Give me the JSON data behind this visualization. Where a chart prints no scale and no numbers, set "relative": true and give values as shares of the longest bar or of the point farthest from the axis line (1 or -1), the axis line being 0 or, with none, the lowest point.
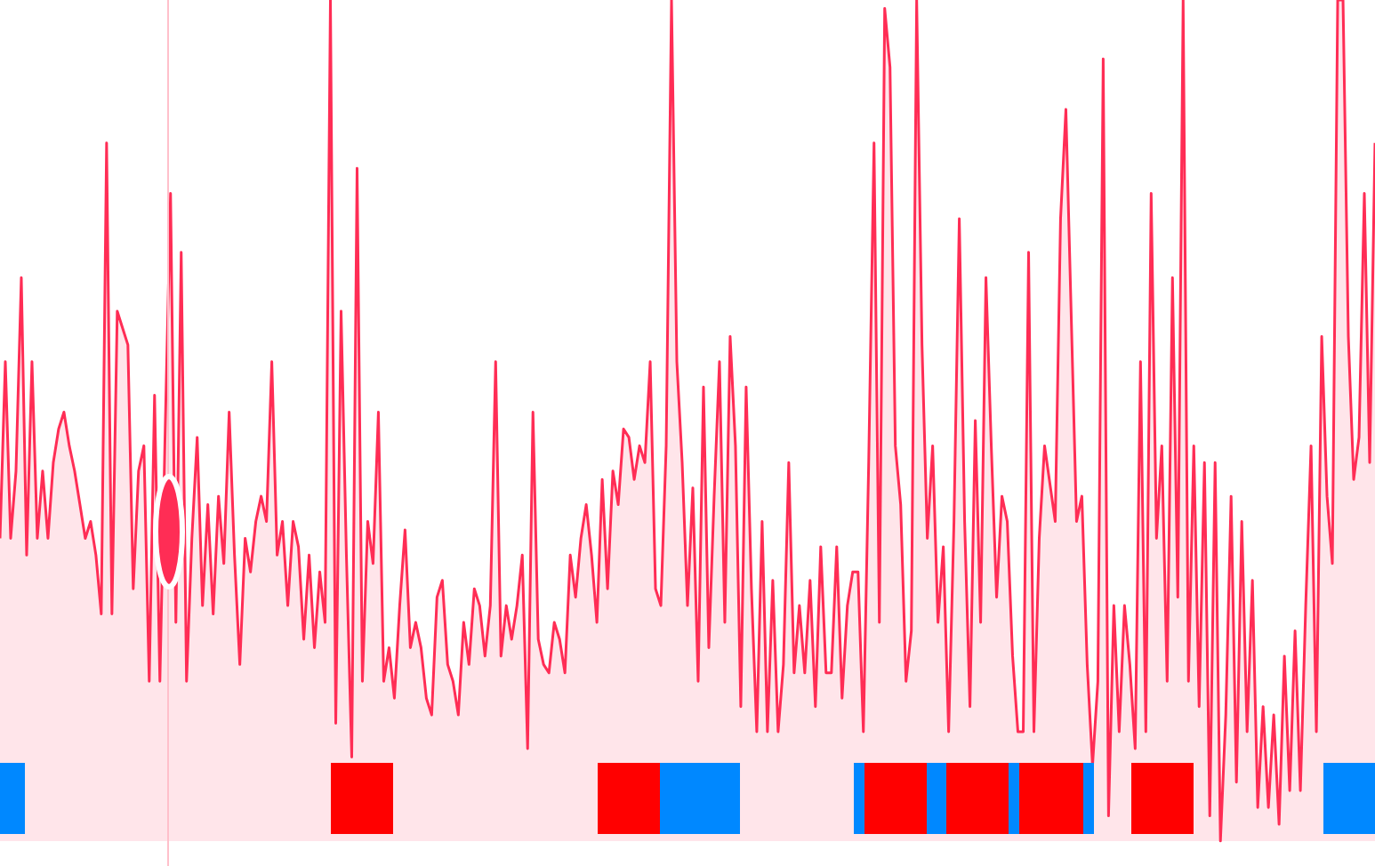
{
  "chart_data": {
    "type": "area",
    "relative": true,
    "tick_labels": false,
    "line_style": "solid",
    "categories": [
      null,
      null,
      null,
      null,
      null,
      null,
      null,
      null,
      null,
      null,
      null,
      null,
      null,
      null,
      null,
      null,
      null,
      null,
      null,
      null,
      null,
      null,
      null,
      null,
      null,
      null,
      null,
      null,
      null,
      null,
      null,
      null,
      null,
      null,
      null,
      null,
      null,
      null,
      null,
      null,
      null,
      null,
      null,
      null,
      null,
      null,
      null,
      null,
      null,
      null,
      null,
      null,
      null,
      null,
      null,
      null,
      null,
      null,
      null,
      null,
      null,
      null,
      null,
      null,
      null,
      null,
      null,
      null,
      null,
      null,
      null,
      null,
      null,
      null,
      null,
      null,
      null,
      null,
      null,
      null,
      null,
      null,
      null,
      null,
      null,
      null,
      null,
      null,
      null,
      null,
      null,
      null,
      null,
      null,
      null,
      null,
      null,
      null,
      null,
      null,
      null,
      null,
      null,
      null,
      null,
      null,
      null,
      null,
      null,
      null,
      null,
      null,
      null,
      null,
      null,
      null,
      null,
      null,
      null,
      null,
      null,
      null,
      null,
      null,
      null,
      null,
      null,
      null,
      null,
      null,
      null,
      null,
      null,
      null,
      null,
      null,
      null,
      null,
      null,
      null,
      null,
      null,
      null,
      null,
      null,
      null,
      null,
      null,
      null,
      null,
      null,
      null,
      null,
      null,
      null,
      null,
      null,
      null,
      null,
      null,
      null,
      null,
      null,
      null,
      null,
      null,
      null,
      null,
      null,
      null,
      null,
      null,
      null,
      null,
      null,
      null,
      null,
      null,
      null,
      null,
      null,
      null,
      null,
      null,
      null,
      null,
      null,
      null,
      null,
      null,
      null,
      null,
      null,
      null,
      null,
      null,
      null,
      null,
      null,
      null,
      null,
      null,
      null,
      null,
      null,
      null,
      null,
      null,
      null,
      null,
      null,
      null,
      null,
      null,
      null,
      null,
      null,
      null,
      null,
      null,
      null,
      null,
      null,
      null,
      null,
      null,
      null,
      null,
      null,
      null,
      null,
      null,
      null,
      null,
      null,
      null,
      null,
      null,
      null,
      null,
      null,
      null,
      null,
      null,
      null,
      null,
      null,
      null,
      null,
      null,
      null,
      null,
      null,
      null,
      null,
      null,
      null,
      null,
      null
    ],
    "series": [
      {
        "color": "#ff2d55",
        "values": [
          0.36,
          0.57,
          0.36,
          0.44,
          0.67,
          0.34,
          0.57,
          0.36,
          0.44,
          0.36,
          0.45,
          0.49,
          0.51,
          0.47,
          0.44,
          0.4,
          0.36,
          0.38,
          0.34,
          0.27,
          0.83,
          0.27,
          0.63,
          0.61,
          0.59,
          0.3,
          0.44,
          0.47,
          0.19,
          0.53,
          0.19,
          0.49,
          0.77,
          0.26,
          0.7,
          0.19,
          0.36,
          0.48,
          0.28,
          0.4,
          0.27,
          0.41,
          0.33,
          0.51,
          0.34,
          0.21,
          0.36,
          0.32,
          0.38,
          0.41,
          0.38,
          0.57,
          0.34,
          0.38,
          0.28,
          0.38,
          0.35,
          0.24,
          0.34,
          0.23,
          0.32,
          0.26,
          1,
          0.14,
          0.63,
          0.34,
          0.1,
          0.8,
          0.19,
          0.38,
          0.33,
          0.51,
          0.19,
          0.23,
          0.17,
          0.28,
          0.37,
          0.23,
          0.26,
          0.23,
          0.17,
          0.15,
          0.29,
          0.31,
          0.21,
          0.19,
          0.15,
          0.26,
          0.21,
          0.3,
          0.28,
          0.22,
          0.28,
          0.57,
          0.22,
          0.28,
          0.24,
          0.28,
          0.34,
          0.11,
          0.51,
          0.24,
          0.21,
          0.2,
          0.26,
          0.24,
          0.2,
          0.34,
          0.29,
          0.36,
          0.4,
          0.34,
          0.26,
          0.43,
          0.3,
          0.44,
          0.4,
          0.49,
          0.48,
          0.43,
          0.47,
          0.45,
          0.57,
          0.3,
          0.28,
          0.47,
          1,
          0.57,
          0.45,
          0.28,
          0.42,
          0.19,
          0.54,
          0.23,
          0.41,
          0.57,
          0.26,
          0.6,
          0.47,
          0.16,
          0.54,
          0.3,
          0.13,
          0.38,
          0.13,
          0.31,
          0.13,
          0.21,
          0.45,
          0.2,
          0.28,
          0.2,
          0.31,
          0.16,
          0.35,
          0.2,
          0.2,
          0.35,
          0.17,
          0.28,
          0.32,
          0.32,
          0.13,
          0.45,
          0.83,
          0.26,
          0.99,
          0.92,
          0.47,
          0.4,
          0.19,
          0.25,
          1,
          0.59,
          0.36,
          0.47,
          0.26,
          0.35,
          0.13,
          0.38,
          0.74,
          0.38,
          0.16,
          0.5,
          0.26,
          0.67,
          0.47,
          0.29,
          0.41,
          0.38,
          0.22,
          0.13,
          0.13,
          0.7,
          0.13,
          0.36,
          0.47,
          null,
          0.38,
          0.74,
          0.87,
          null,
          0.38,
          0.41,
          0.21,
          0.09,
          0.19,
          0.93,
          0.03,
          0.28,
          0.13,
          0.28,
          0.21,
          0.11,
          0.57,
          0.13,
          0.77,
          0.36,
          0.47,
          0.19,
          0.67,
          0.29,
          1,
          0.19,
          0.47,
          0.16,
          0.45,
          0.03,
          0.45,
          0,
          0.15,
          0.41,
          0.07,
          0.38,
          0.13,
          0.31,
          0.04,
          0.16,
          0.04,
          0.15,
          0.02,
          0.22,
          0.06,
          0.25,
          0.06,
          0.28,
          0.47,
          0.13,
          0.6,
          0.41,
          0.33,
          1,
          1,
          0.6,
          0.43,
          0.48,
          0.77,
          0.45,
          0.83
        ]
      }
    ]
  }
}
